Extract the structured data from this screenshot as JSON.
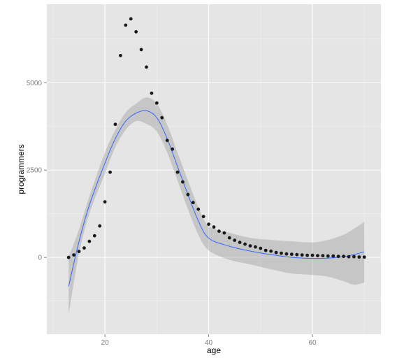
{
  "chart_data": {
    "type": "scatter",
    "title": "",
    "xlabel": "age",
    "ylabel": "programmers",
    "xlim": [
      8.8,
      73.2
    ],
    "ylim": [
      -2200,
      7250
    ],
    "x_ticks": [
      20,
      40,
      60
    ],
    "x_tick_labels": [
      "20",
      "40",
      "60"
    ],
    "y_ticks": [
      0,
      2500,
      5000
    ],
    "y_tick_labels": [
      "0",
      "2500",
      "5000"
    ],
    "grid": true,
    "legend": "none",
    "points": [
      [
        13,
        0
      ],
      [
        14,
        70
      ],
      [
        15,
        170
      ],
      [
        16,
        270
      ],
      [
        17,
        460
      ],
      [
        18,
        620
      ],
      [
        19,
        900
      ],
      [
        20,
        1590
      ],
      [
        21,
        2440
      ],
      [
        22,
        3810
      ],
      [
        23,
        5780
      ],
      [
        24,
        6650
      ],
      [
        25,
        6830
      ],
      [
        26,
        6460
      ],
      [
        27,
        5950
      ],
      [
        28,
        5450
      ],
      [
        29,
        4700
      ],
      [
        30,
        4420
      ],
      [
        31,
        4000
      ],
      [
        32,
        3350
      ],
      [
        33,
        3100
      ],
      [
        34,
        2440
      ],
      [
        35,
        2160
      ],
      [
        36,
        1800
      ],
      [
        37,
        1570
      ],
      [
        38,
        1380
      ],
      [
        39,
        1170
      ],
      [
        40,
        950
      ],
      [
        41,
        870
      ],
      [
        42,
        750
      ],
      [
        43,
        700
      ],
      [
        44,
        560
      ],
      [
        45,
        490
      ],
      [
        46,
        430
      ],
      [
        47,
        380
      ],
      [
        48,
        330
      ],
      [
        49,
        300
      ],
      [
        50,
        260
      ],
      [
        51,
        200
      ],
      [
        52,
        180
      ],
      [
        53,
        140
      ],
      [
        54,
        120
      ],
      [
        55,
        100
      ],
      [
        56,
        90
      ],
      [
        57,
        80
      ],
      [
        58,
        70
      ],
      [
        59,
        60
      ],
      [
        60,
        60
      ],
      [
        61,
        50
      ],
      [
        62,
        50
      ],
      [
        63,
        40
      ],
      [
        64,
        40
      ],
      [
        65,
        30
      ],
      [
        66,
        30
      ],
      [
        67,
        20
      ],
      [
        68,
        20
      ],
      [
        69,
        10
      ],
      [
        70,
        10
      ]
    ],
    "smooth": {
      "x": [
        13,
        15,
        17,
        20,
        22,
        24,
        26,
        28,
        30,
        32,
        34,
        36,
        38,
        40,
        44,
        48,
        52,
        56,
        60,
        63,
        66,
        68,
        70
      ],
      "y": [
        -830,
        450,
        1500,
        2700,
        3400,
        3900,
        4130,
        4200,
        4000,
        3400,
        2600,
        1800,
        1050,
        550,
        320,
        180,
        80,
        0,
        -30,
        -20,
        20,
        80,
        160
      ],
      "lower": [
        -1650,
        100,
        1250,
        2400,
        3150,
        3650,
        3900,
        3820,
        3600,
        3000,
        2200,
        1380,
        650,
        200,
        -70,
        -200,
        -340,
        -460,
        -500,
        -550,
        -680,
        -780,
        -720
      ],
      "upper": [
        0,
        800,
        1750,
        3000,
        3650,
        4150,
        4400,
        4580,
        4400,
        3800,
        3000,
        2200,
        1450,
        900,
        710,
        560,
        500,
        460,
        430,
        500,
        650,
        820,
        1020
      ]
    },
    "colors": {
      "panel": "#e5e5e5",
      "grid_major": "#ffffff",
      "grid_minor": "#f2f2f2",
      "points": "#1a1a1a",
      "line": "#3366ff",
      "ribbon": "#999999"
    }
  }
}
